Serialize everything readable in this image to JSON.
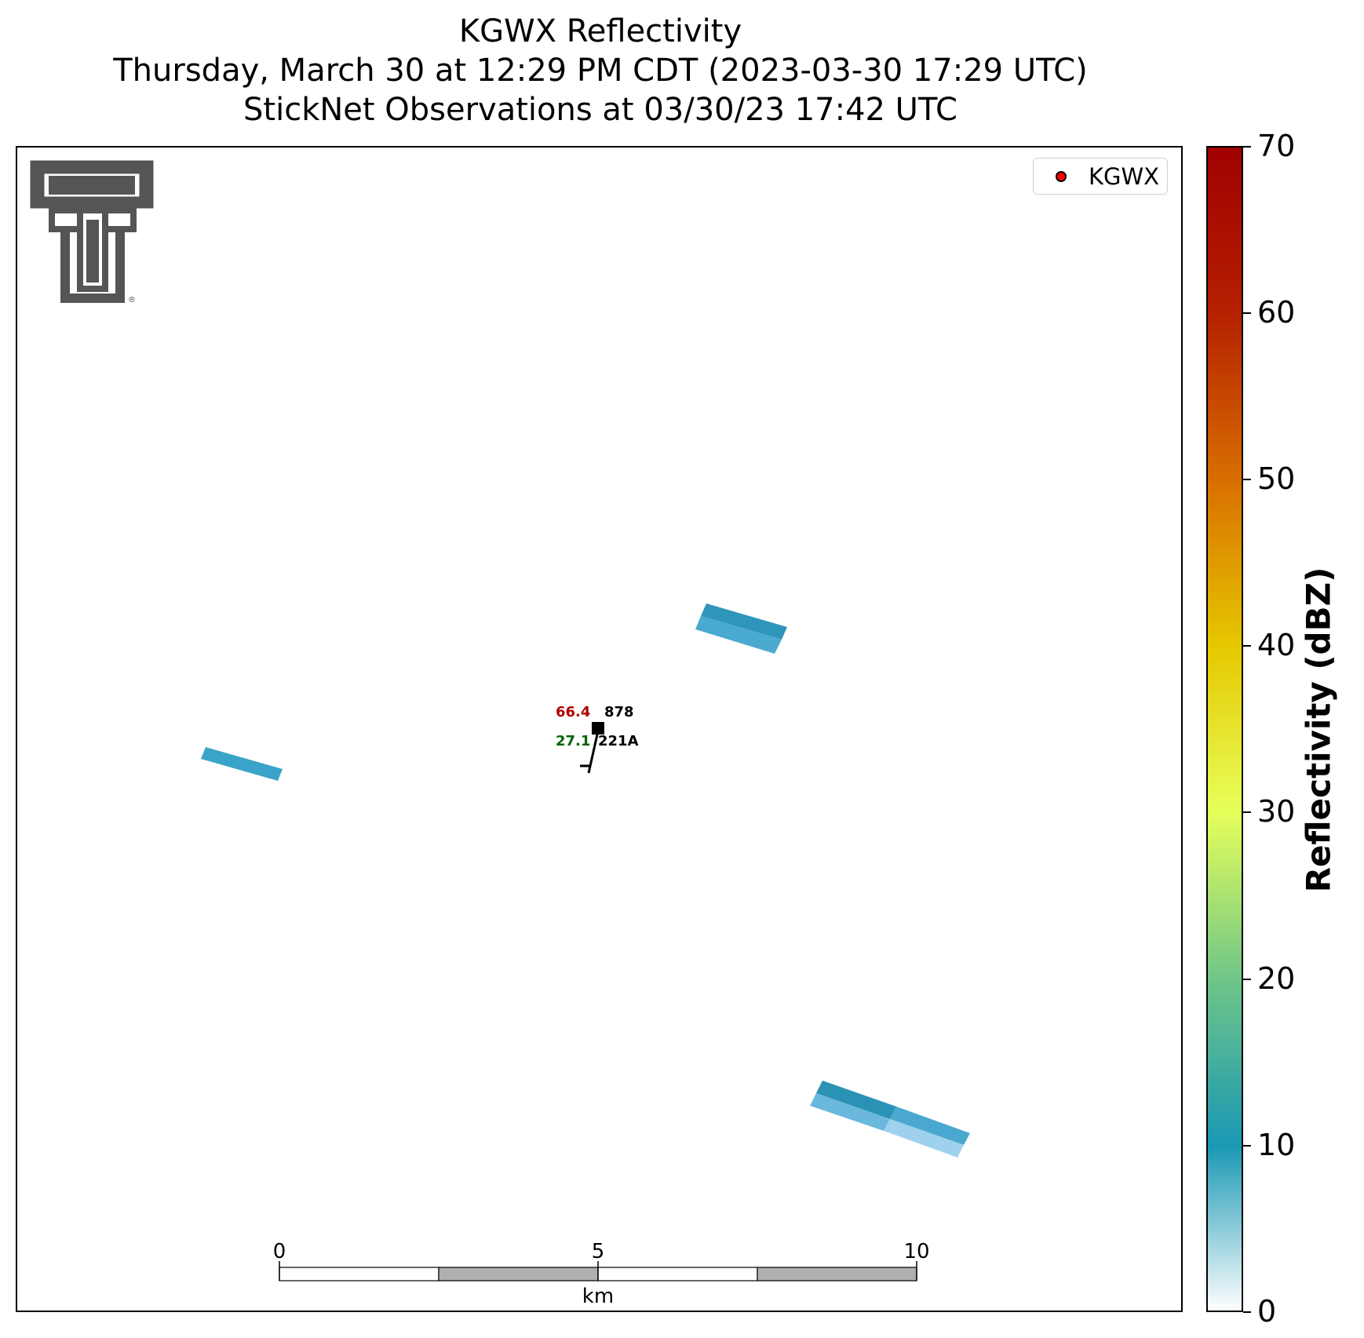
{
  "title": {
    "line1": "KGWX Reflectivity",
    "line2": "Thursday, March 30 at 12:29 PM CDT (2023-03-30 17:29 UTC)",
    "line3": "StickNet Observations at 03/30/23 17:42 UTC"
  },
  "legend": {
    "label": "KGWX",
    "marker_color": "#ff0000"
  },
  "colorbar": {
    "title": "Reflectivity (dBZ)",
    "ticks": [
      "0",
      "10",
      "20",
      "30",
      "40",
      "50",
      "60",
      "70"
    ],
    "range": [
      0,
      70
    ],
    "colors": [
      "#ffffff",
      "#1a98b4",
      "#70c688",
      "#e6ff5a",
      "#e6c800",
      "#d86e00",
      "#b42000",
      "#a00000"
    ]
  },
  "station": {
    "temperature": "66.4",
    "dewpoint": "27.1",
    "pressure": "878",
    "id": "221A",
    "temperature_color": "#b00000",
    "dewpoint_color": "#006400"
  },
  "scale_bar": {
    "ticks": [
      "0",
      "5",
      "10"
    ],
    "unit": "km"
  },
  "logo": {
    "name": "Texas Tech Double T",
    "color": "#555555"
  },
  "echo_color": "#3aa0c4"
}
